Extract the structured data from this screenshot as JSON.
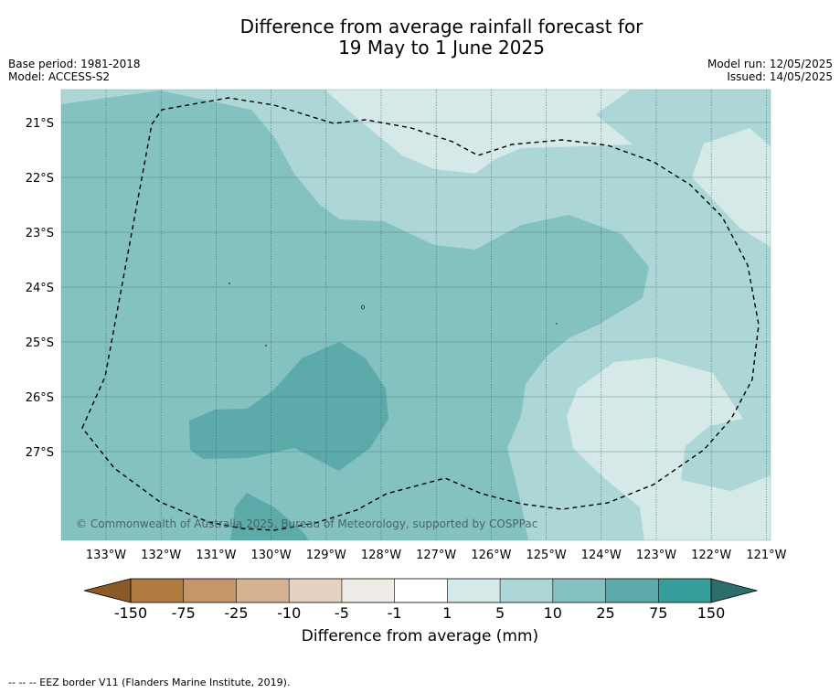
{
  "title": {
    "line1": "Difference from average rainfall forecast for",
    "line2": "19 May to 1 June 2025"
  },
  "meta": {
    "base_period": "Base period: 1981-2018",
    "model": "Model: ACCESS-S2",
    "model_run": "Model run: 12/05/2025",
    "issued": "Issued: 14/05/2025"
  },
  "map": {
    "lat_labels": [
      "21°S",
      "22°S",
      "23°S",
      "24°S",
      "25°S",
      "26°S",
      "27°S"
    ],
    "lon_labels": [
      "133°W",
      "132°W",
      "131°W",
      "130°W",
      "129°W",
      "128°W",
      "127°W",
      "126°W",
      "125°W",
      "124°W",
      "123°W",
      "122°W",
      "121°W"
    ],
    "copyright": "© Commonwealth of Australia 2025, Bureau of Meteorology, supported by COSPPac",
    "gridlines": true
  },
  "colorbar": {
    "title": "Difference from average (mm)",
    "tick_labels": [
      "-150",
      "-75",
      "-25",
      "-10",
      "-5",
      "-1",
      "1",
      "5",
      "10",
      "25",
      "75",
      "150"
    ],
    "colors": {
      "below_min": "#8c5a26",
      "bins": [
        "#b07a40",
        "#c49668",
        "#d5b392",
        "#e5d2c0",
        "#efece7",
        "#ffffff",
        "#d4e9e8",
        "#add7d6",
        "#84c2c1",
        "#5caaaa",
        "#379d9b"
      ],
      "above_max": "#2d6e6c"
    }
  },
  "footnote": "-- -- -- EEZ border V11 (Flanders Marine Institute, 2019)."
}
